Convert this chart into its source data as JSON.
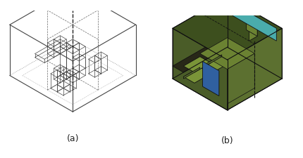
{
  "fig_width": 4.3,
  "fig_height": 2.26,
  "dpi": 100,
  "background": "#ffffff",
  "label_a": "(a)",
  "label_b": "(b)",
  "label_fontsize": 9,
  "colors": {
    "top_dark": "#3d4f1e",
    "left_face": "#4a5c28",
    "front_face": "#5c7030",
    "inner_top": "#6b8232",
    "inner_front": "#5c7030",
    "cyan": "#4aacac",
    "blue": "#3060a0",
    "dark_floor": "#282818",
    "step_green": "#7a9438",
    "notch_face": "#6b8232",
    "edge_color": "#111111"
  }
}
